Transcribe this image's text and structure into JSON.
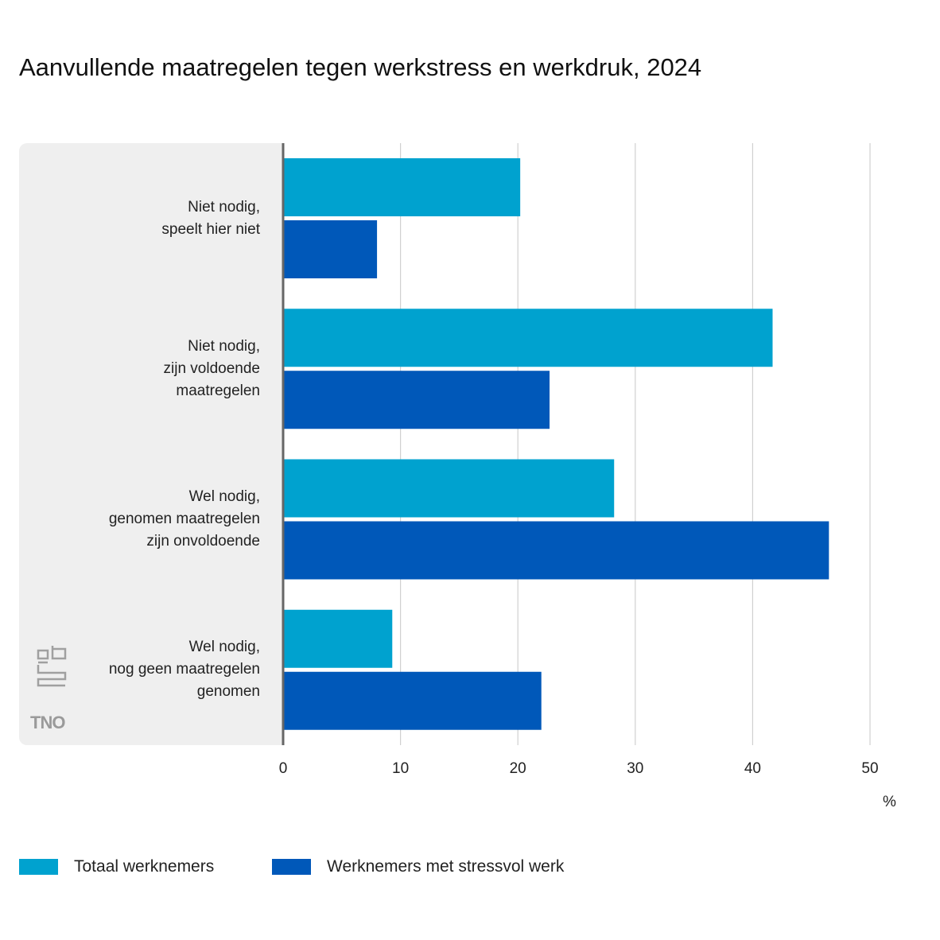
{
  "chart_data": {
    "type": "bar",
    "orientation": "horizontal",
    "title": "Aanvullende maatregelen tegen werkstress en werkdruk, 2024",
    "categories": [
      "Niet nodig,\nspeelt hier niet",
      "Niet nodig,\nzijn voldoende\nmaatregelen",
      "Wel nodig,\ngenomen maatregelen\nzijn onvoldoende",
      "Wel nodig,\nnog geen maatregelen\ngenomen"
    ],
    "series": [
      {
        "name": "Totaal werknemers",
        "color": "#00a2cf",
        "values": [
          20.2,
          41.7,
          28.2,
          9.3
        ]
      },
      {
        "name": "Werknemers met stressvol werk",
        "color": "#0058b9",
        "values": [
          8.0,
          22.7,
          46.5,
          22.0
        ]
      }
    ],
    "xlim": [
      0,
      50
    ],
    "xticks": [
      "0",
      "10",
      "20",
      "30",
      "40",
      "50"
    ],
    "xunit": "%",
    "grid": true,
    "legend": "bottom-left",
    "logos": [
      "cbs",
      "TNO"
    ]
  }
}
